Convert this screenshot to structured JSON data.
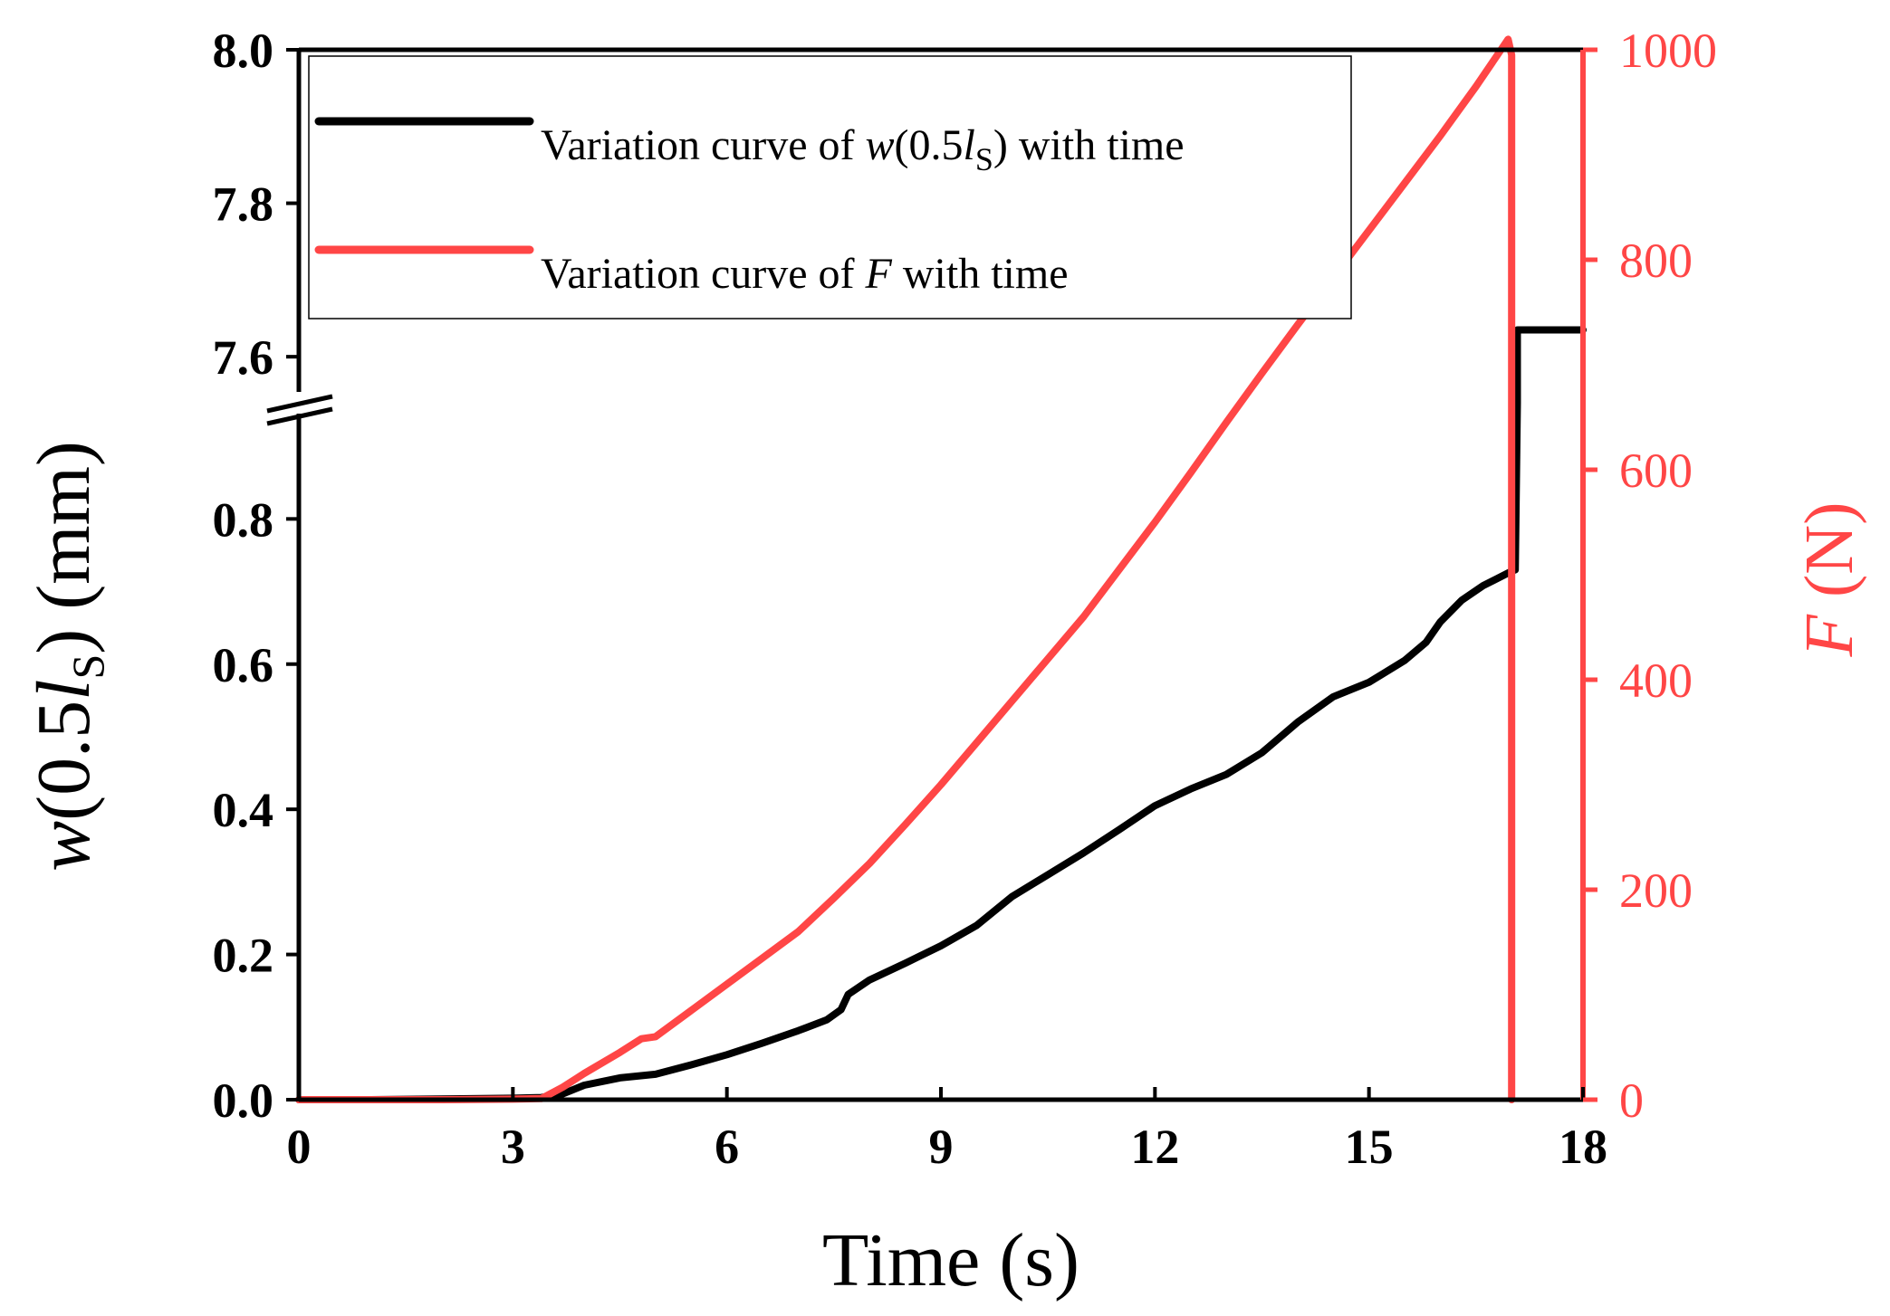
{
  "chart_data": {
    "type": "line",
    "xlabel": "Time (s)",
    "ylabel": {
      "var": "w",
      "paren_open": "(0.5",
      "sub_var": "l",
      "subscript": "S",
      "paren_close": ")",
      "unit": " (mm)"
    },
    "y2label": {
      "var": "F",
      "unit": " (N)"
    },
    "xlim": [
      0,
      18
    ],
    "xticks": [
      "0",
      "3",
      "6",
      "9",
      "12",
      "15",
      "18"
    ],
    "y_lower_ticks": [
      "0.0",
      "0.2",
      "0.4",
      "0.6",
      "0.8"
    ],
    "y_upper_ticks": [
      "7.6",
      "7.8",
      "8.0"
    ],
    "y_axis_break": {
      "lower_range": [
        0,
        0.96
      ],
      "upper_range": [
        7.54,
        8.0
      ]
    },
    "y2lim": [
      0,
      1000
    ],
    "y2ticks": [
      "0",
      "200",
      "400",
      "600",
      "800",
      "1000"
    ],
    "legend": {
      "position": "top-left",
      "entries": [
        {
          "prefix": "Variation curve of ",
          "var": "w",
          "mid": "(0.5",
          "sub_var": "l",
          "subscript": "S",
          "suffix": ") with time",
          "color": "#000000"
        },
        {
          "prefix": "Variation curve of ",
          "var": "F",
          "suffix": " with time",
          "color": "#ff4646"
        }
      ]
    },
    "series": [
      {
        "color": "#000000",
        "axis": "left",
        "points": [
          [
            0,
            0
          ],
          [
            1,
            0
          ],
          [
            2,
            0.001
          ],
          [
            3,
            0.002
          ],
          [
            3.4,
            0.003
          ],
          [
            3.7,
            0.008
          ],
          [
            4,
            0.02
          ],
          [
            4.5,
            0.03
          ],
          [
            5,
            0.035
          ],
          [
            5.5,
            0.048
          ],
          [
            6,
            0.062
          ],
          [
            6.5,
            0.078
          ],
          [
            7,
            0.095
          ],
          [
            7.4,
            0.11
          ],
          [
            7.6,
            0.124
          ],
          [
            7.7,
            0.145
          ],
          [
            8,
            0.165
          ],
          [
            8.5,
            0.188
          ],
          [
            9,
            0.212
          ],
          [
            9.5,
            0.24
          ],
          [
            10,
            0.28
          ],
          [
            10.5,
            0.31
          ],
          [
            11,
            0.34
          ],
          [
            11.5,
            0.372
          ],
          [
            12,
            0.405
          ],
          [
            12.5,
            0.428
          ],
          [
            13,
            0.448
          ],
          [
            13.5,
            0.478
          ],
          [
            14,
            0.52
          ],
          [
            14.5,
            0.555
          ],
          [
            15,
            0.575
          ],
          [
            15.5,
            0.605
          ],
          [
            15.8,
            0.63
          ],
          [
            16,
            0.658
          ],
          [
            16.3,
            0.688
          ],
          [
            16.6,
            0.708
          ],
          [
            17,
            0.728
          ],
          [
            17.05,
            0.73
          ],
          [
            17.08,
            0.96
          ],
          [
            17.08,
            7.635
          ],
          [
            18,
            7.635
          ]
        ]
      },
      {
        "color": "#ff4646",
        "axis": "right",
        "points": [
          [
            0,
            0
          ],
          [
            2,
            0
          ],
          [
            3,
            0.5
          ],
          [
            3.4,
            1
          ],
          [
            3.7,
            12
          ],
          [
            4,
            25
          ],
          [
            4.5,
            45
          ],
          [
            4.8,
            58
          ],
          [
            5,
            60
          ],
          [
            5.5,
            85
          ],
          [
            6,
            110
          ],
          [
            6.5,
            135
          ],
          [
            7,
            160
          ],
          [
            7.5,
            192
          ],
          [
            8,
            225
          ],
          [
            8.5,
            262
          ],
          [
            9,
            300
          ],
          [
            9.5,
            340
          ],
          [
            10,
            380
          ],
          [
            10.5,
            420
          ],
          [
            11,
            460
          ],
          [
            11.5,
            505
          ],
          [
            12,
            550
          ],
          [
            12.5,
            597
          ],
          [
            13,
            645
          ],
          [
            13.5,
            692
          ],
          [
            14,
            738
          ],
          [
            14.5,
            783
          ],
          [
            15,
            828
          ],
          [
            15.5,
            873
          ],
          [
            16,
            918
          ],
          [
            16.5,
            965
          ],
          [
            16.95,
            1010
          ],
          [
            17.0,
            995
          ],
          [
            17.0,
            0
          ]
        ]
      }
    ]
  }
}
